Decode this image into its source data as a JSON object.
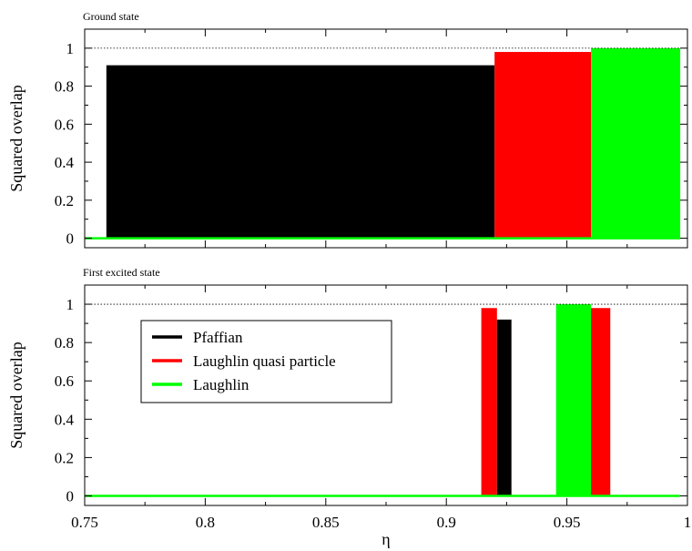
{
  "chart_data": {
    "type": "bar",
    "xlabel": "η",
    "xlim": [
      0.75,
      1.0
    ],
    "x_ticks": [
      "0.75",
      "0.8",
      "0.85",
      "0.9",
      "0.95",
      "1"
    ],
    "legend_placement": "upper-left",
    "series_meta": [
      {
        "name": "Pfaffian",
        "color": "#000000"
      },
      {
        "name": "Laughlin quasi particle",
        "color": "#ff0000"
      },
      {
        "name": "Laughlin",
        "color": "#00ff00"
      }
    ],
    "panels": [
      {
        "title": "Ground state",
        "ylabel": "Squared overlap",
        "ylim": [
          -0.05,
          1.1
        ],
        "y_ticks": [
          "0",
          "0.2",
          "0.4",
          "0.6",
          "0.8",
          "1"
        ],
        "reference_line": 1.0,
        "bars": [
          {
            "series": "Pfaffian",
            "x0": 0.759,
            "x1": 0.92,
            "value": 0.91
          },
          {
            "series": "Laughlin quasi particle",
            "x0": 0.92,
            "x1": 0.96,
            "value": 0.98
          },
          {
            "series": "Laughlin",
            "x0": 0.96,
            "x1": 0.997,
            "value": 1.0
          }
        ],
        "baseline": {
          "series": "Laughlin",
          "x0": 0.75,
          "x1": 0.997,
          "value": 0.0
        }
      },
      {
        "title": "First excited state",
        "ylabel": "Squared overlap",
        "ylim": [
          -0.05,
          1.1
        ],
        "y_ticks": [
          "0",
          "0.2",
          "0.4",
          "0.6",
          "0.8",
          "1"
        ],
        "reference_line": 1.0,
        "bars": [
          {
            "series": "Laughlin quasi particle",
            "x0": 0.9145,
            "x1": 0.921,
            "value": 0.98
          },
          {
            "series": "Pfaffian",
            "x0": 0.921,
            "x1": 0.927,
            "value": 0.92
          },
          {
            "series": "Laughlin",
            "x0": 0.9455,
            "x1": 0.96,
            "value": 1.0
          },
          {
            "series": "Laughlin quasi particle",
            "x0": 0.96,
            "x1": 0.968,
            "value": 0.98
          }
        ],
        "baseline": {
          "series": "Laughlin",
          "x0": 0.75,
          "x1": 0.997,
          "value": 0.0
        },
        "legend": [
          "Pfaffian",
          "Laughlin quasi particle",
          "Laughlin"
        ]
      }
    ]
  }
}
